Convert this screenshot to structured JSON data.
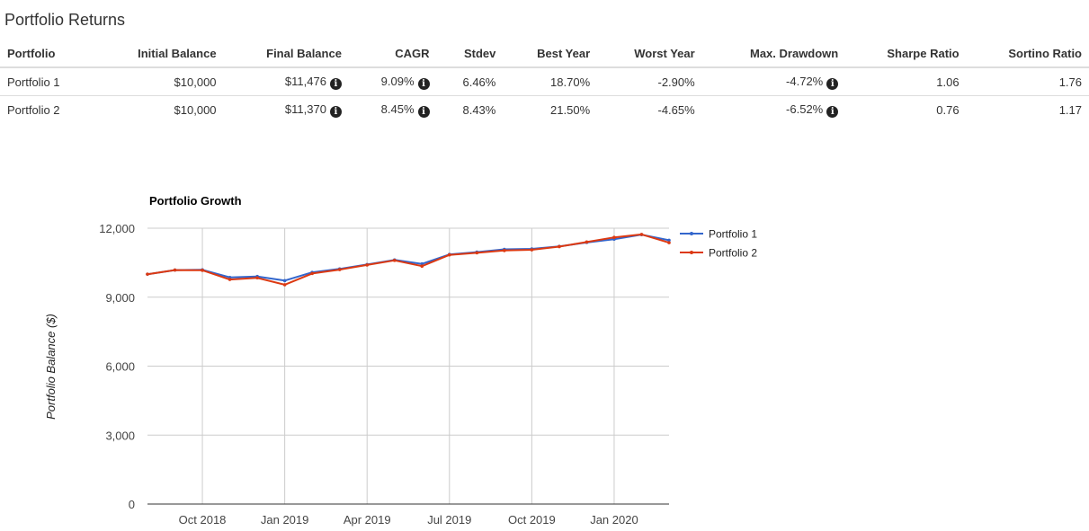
{
  "section": {
    "title": "Portfolio Returns"
  },
  "table": {
    "columns": [
      "Portfolio",
      "Initial Balance",
      "Final Balance",
      "CAGR",
      "Stdev",
      "Best Year",
      "Worst Year",
      "Max. Drawdown",
      "Sharpe Ratio",
      "Sortino Ratio"
    ],
    "rows": [
      {
        "portfolio": "Portfolio 1",
        "initial_balance": "$10,000",
        "final_balance": "$11,476",
        "cagr": "9.09%",
        "stdev": "6.46%",
        "best_year": "18.70%",
        "worst_year": "-2.90%",
        "max_drawdown": "-4.72%",
        "sharpe": "1.06",
        "sortino": "1.76"
      },
      {
        "portfolio": "Portfolio 2",
        "initial_balance": "$10,000",
        "final_balance": "$11,370",
        "cagr": "8.45%",
        "stdev": "8.43%",
        "best_year": "21.50%",
        "worst_year": "-4.65%",
        "max_drawdown": "-6.52%",
        "sharpe": "0.76",
        "sortino": "1.17"
      }
    ],
    "info_icon": "info-circle-icon"
  },
  "chart_data": {
    "type": "line",
    "title": "Portfolio Growth",
    "ylabel": "Portfolio Balance ($)",
    "xlabel": "",
    "ylim": [
      0,
      12000
    ],
    "yticks": [
      0,
      3000,
      6000,
      9000,
      12000
    ],
    "ytick_labels": [
      "0",
      "3,000",
      "6,000",
      "9,000",
      "12,000"
    ],
    "xlim": [
      "2018-08",
      "2020-03"
    ],
    "xticks": [
      "2018-10",
      "2019-01",
      "2019-04",
      "2019-07",
      "2019-10",
      "2020-01"
    ],
    "xtick_labels": [
      "Oct 2018",
      "Jan 2019",
      "Apr 2019",
      "Jul 2019",
      "Oct 2019",
      "Jan 2020"
    ],
    "x": [
      "2018-08",
      "2018-09",
      "2018-10",
      "2018-11",
      "2018-12",
      "2019-01",
      "2019-02",
      "2019-03",
      "2019-04",
      "2019-05",
      "2019-06",
      "2019-07",
      "2019-08",
      "2019-09",
      "2019-10",
      "2019-11",
      "2019-12",
      "2020-01",
      "2020-02",
      "2020-03"
    ],
    "series": [
      {
        "name": "Portfolio 1",
        "color": "#3366cc",
        "values": [
          10000,
          10180,
          10190,
          9860,
          9900,
          9720,
          10080,
          10230,
          10420,
          10620,
          10450,
          10860,
          10960,
          11080,
          11100,
          11210,
          11380,
          11520,
          11720,
          11476
        ]
      },
      {
        "name": "Portfolio 2",
        "color": "#dc3912",
        "values": [
          10000,
          10180,
          10170,
          9770,
          9840,
          9540,
          10030,
          10200,
          10400,
          10600,
          10350,
          10840,
          10930,
          11030,
          11060,
          11200,
          11400,
          11600,
          11730,
          11370
        ]
      }
    ],
    "legend": "right",
    "grid": true
  }
}
